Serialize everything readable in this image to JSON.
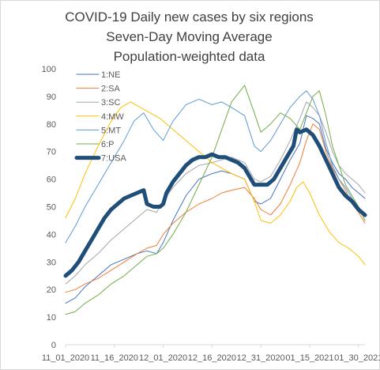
{
  "chart_data": {
    "type": "line",
    "title": [
      "COVID-19 Daily new cases by six regions",
      "Seven-Day Moving Average",
      "Population-weighted data"
    ],
    "xlabel": "",
    "ylabel": "",
    "x_tick_labels": [
      "11_01_2020",
      "11_16_2020",
      "12_01_2020",
      "12_16_2020",
      "12_31_2020",
      "01_15_2021",
      "01_30_2021"
    ],
    "x_tick_days": [
      0,
      15,
      30,
      45,
      60,
      75,
      90
    ],
    "xlim": [
      0,
      92
    ],
    "ylim": [
      0,
      100
    ],
    "y_ticks": [
      0,
      10,
      20,
      30,
      40,
      50,
      60,
      70,
      80,
      90,
      100
    ],
    "grid": false,
    "legend": "top-left",
    "series": [
      {
        "name": "1:NE",
        "color": "#4472c4",
        "width": 1,
        "x": [
          0,
          3,
          6,
          10,
          14,
          18,
          22,
          25,
          28,
          30,
          33,
          37,
          41,
          45,
          48,
          51,
          55,
          58,
          60,
          63,
          66,
          69,
          72,
          74,
          76,
          78,
          80,
          82,
          84,
          86,
          88,
          90,
          92
        ],
        "y": [
          15,
          17,
          21,
          25,
          29,
          31,
          33,
          34,
          33,
          37,
          45,
          54,
          60,
          62,
          63,
          62,
          60,
          52,
          51,
          53,
          60,
          67,
          73,
          83,
          82,
          80,
          71,
          66,
          62,
          60,
          57,
          55,
          53
        ]
      },
      {
        "name": "2:SA",
        "color": "#ed7d31",
        "width": 1,
        "x": [
          0,
          3,
          6,
          10,
          14,
          18,
          22,
          25,
          28,
          30,
          33,
          37,
          41,
          45,
          48,
          51,
          55,
          58,
          60,
          63,
          66,
          69,
          72,
          74,
          76,
          78,
          80,
          82,
          84,
          86,
          88,
          90,
          92
        ],
        "y": [
          19,
          20,
          22,
          24,
          27,
          30,
          33,
          35,
          36,
          40,
          44,
          48,
          51,
          53,
          55,
          56,
          57,
          53,
          49,
          47,
          51,
          58,
          66,
          74,
          80,
          78,
          70,
          64,
          60,
          56,
          51,
          48,
          44
        ]
      },
      {
        "name": "3:SC",
        "color": "#a5a5a5",
        "width": 1,
        "x": [
          0,
          3,
          6,
          10,
          14,
          18,
          22,
          25,
          28,
          30,
          33,
          37,
          41,
          45,
          48,
          51,
          55,
          58,
          60,
          63,
          66,
          69,
          72,
          74,
          76,
          78,
          80,
          82,
          84,
          86,
          88,
          90,
          92
        ],
        "y": [
          22,
          25,
          29,
          33,
          38,
          42,
          46,
          49,
          48,
          52,
          57,
          62,
          65,
          66,
          67,
          68,
          66,
          60,
          59,
          61,
          67,
          74,
          82,
          88,
          86,
          83,
          77,
          70,
          65,
          62,
          60,
          58,
          55
        ]
      },
      {
        "name": "4:MW",
        "color": "#ffc000",
        "width": 1,
        "x": [
          0,
          3,
          6,
          10,
          14,
          17,
          20,
          23,
          26,
          29,
          33,
          37,
          41,
          45,
          48,
          51,
          55,
          58,
          60,
          63,
          66,
          69,
          71,
          73,
          75,
          78,
          81,
          84,
          87,
          90,
          92
        ],
        "y": [
          46,
          53,
          62,
          72,
          81,
          86,
          88,
          86,
          84,
          82,
          78,
          74,
          70,
          66,
          64,
          62,
          60,
          52,
          45,
          44,
          47,
          52,
          57,
          59,
          55,
          47,
          41,
          37,
          35,
          32,
          29
        ]
      },
      {
        "name": "5:MT",
        "color": "#5b9bd5",
        "width": 1,
        "x": [
          0,
          3,
          6,
          10,
          14,
          18,
          21,
          24,
          27,
          30,
          33,
          37,
          41,
          45,
          48,
          51,
          55,
          58,
          60,
          63,
          66,
          69,
          72,
          74,
          76,
          78,
          80,
          82,
          84,
          86,
          88,
          90,
          92
        ],
        "y": [
          37,
          43,
          50,
          58,
          66,
          74,
          81,
          84,
          78,
          74,
          81,
          87,
          89,
          87,
          88,
          86,
          83,
          72,
          70,
          74,
          80,
          86,
          90,
          92,
          89,
          83,
          73,
          65,
          60,
          57,
          53,
          50,
          47
        ]
      },
      {
        "name": "6:P",
        "color": "#70ad47",
        "width": 1,
        "x": [
          0,
          3,
          6,
          10,
          14,
          18,
          22,
          25,
          28,
          30,
          33,
          37,
          41,
          45,
          48,
          51,
          55,
          58,
          60,
          63,
          66,
          69,
          72,
          74,
          76,
          78,
          80,
          82,
          84,
          86,
          88,
          90,
          92
        ],
        "y": [
          11,
          12,
          15,
          18,
          22,
          25,
          29,
          32,
          33,
          35,
          40,
          48,
          58,
          68,
          78,
          88,
          94,
          84,
          77,
          80,
          84,
          82,
          78,
          84,
          90,
          92,
          83,
          72,
          65,
          58,
          54,
          50,
          45
        ]
      },
      {
        "name": "7:USA",
        "color": "#1f4e79",
        "width": 5,
        "x": [
          0,
          2,
          4,
          6,
          8,
          10,
          12,
          14,
          16,
          18,
          20,
          22,
          24,
          25,
          27,
          29,
          30,
          31,
          33,
          35,
          37,
          39,
          41,
          43,
          45,
          47,
          49,
          51,
          53,
          55,
          57,
          58,
          60,
          62,
          64,
          66,
          68,
          70,
          71,
          72,
          74,
          76,
          78,
          80,
          82,
          84,
          86,
          88,
          90,
          92
        ],
        "y": [
          25,
          27,
          30,
          34,
          38,
          42,
          46,
          49,
          51,
          53,
          54,
          55,
          56,
          51,
          50,
          50,
          51,
          55,
          59,
          62,
          65,
          67,
          68,
          68,
          69,
          68,
          68,
          67,
          66,
          64,
          60,
          58,
          58,
          58,
          60,
          64,
          68,
          72,
          78,
          77,
          78,
          76,
          72,
          67,
          62,
          57,
          54,
          52,
          49,
          47
        ]
      }
    ]
  }
}
